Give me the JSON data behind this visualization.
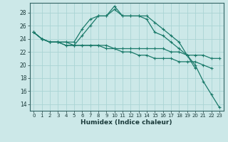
{
  "xlabel": "Humidex (Indice chaleur)",
  "x_values": [
    0,
    1,
    2,
    3,
    4,
    5,
    6,
    7,
    8,
    9,
    10,
    11,
    12,
    13,
    14,
    15,
    16,
    17,
    18,
    19,
    20,
    21,
    22,
    23
  ],
  "series": [
    [
      25.0,
      24.0,
      23.5,
      23.5,
      23.5,
      23.5,
      25.5,
      27.0,
      27.5,
      27.5,
      29.0,
      27.5,
      27.5,
      27.5,
      27.5,
      26.5,
      25.5,
      24.5,
      23.5,
      21.5,
      20.0,
      17.5,
      15.5,
      13.5
    ],
    [
      25.0,
      24.0,
      23.5,
      23.5,
      23.5,
      23.0,
      24.5,
      26.0,
      27.5,
      27.5,
      28.5,
      27.5,
      27.5,
      27.5,
      27.0,
      25.0,
      24.5,
      23.5,
      22.5,
      21.5,
      19.5,
      null,
      null,
      null
    ],
    [
      25.0,
      24.0,
      23.5,
      23.5,
      23.0,
      23.0,
      23.0,
      23.0,
      23.0,
      23.0,
      22.5,
      22.5,
      22.5,
      22.5,
      22.5,
      22.5,
      22.5,
      22.0,
      22.0,
      21.5,
      21.5,
      21.5,
      21.0,
      21.0
    ],
    [
      25.0,
      24.0,
      23.5,
      23.5,
      23.0,
      23.0,
      23.0,
      23.0,
      23.0,
      22.5,
      22.5,
      22.0,
      22.0,
      21.5,
      21.5,
      21.0,
      21.0,
      21.0,
      20.5,
      20.5,
      20.5,
      20.0,
      19.5,
      null
    ]
  ],
  "line_color": "#1a7a6a",
  "bg_color": "#cce8e8",
  "grid_color": "#aad4d4",
  "ylim": [
    13,
    29.5
  ],
  "yticks": [
    14,
    16,
    18,
    20,
    22,
    24,
    26,
    28
  ],
  "xlim": [
    -0.5,
    23.5
  ],
  "xticks": [
    0,
    1,
    2,
    3,
    4,
    5,
    6,
    7,
    8,
    9,
    10,
    11,
    12,
    13,
    14,
    15,
    16,
    17,
    18,
    19,
    20,
    21,
    22,
    23
  ]
}
